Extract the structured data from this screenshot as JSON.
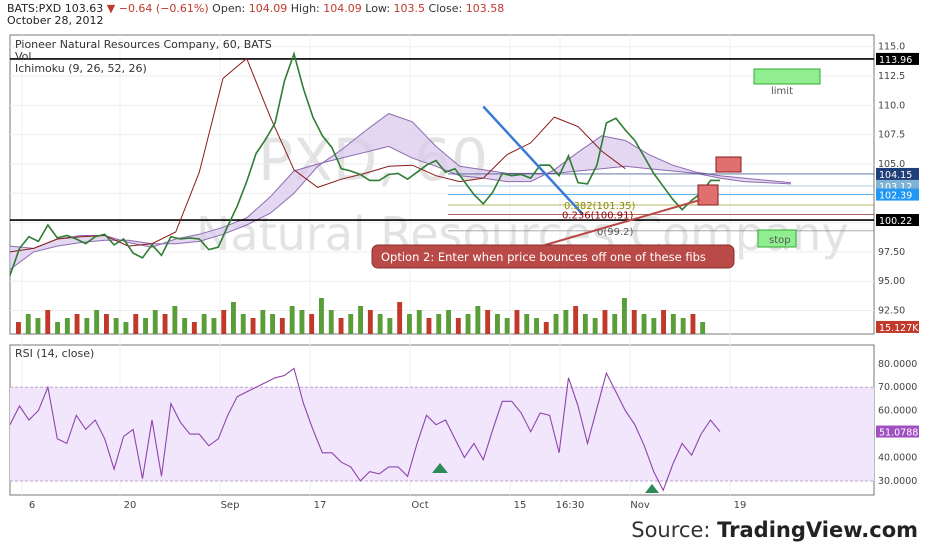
{
  "header": {
    "symbol": "BATS:PXD",
    "last": "103.63",
    "change": "▼ −0.64 (−0.61%)",
    "open_label": "Open:",
    "open": "104.09",
    "high_label": "High:",
    "high": "104.09",
    "low_label": "Low:",
    "low": "103.5",
    "close_label": "Close:",
    "close": "103.58",
    "date": "October 28, 2012"
  },
  "source": {
    "prefix": "Source: ",
    "brand": "TradingView.com"
  },
  "chart_data": [
    {
      "type": "line",
      "title": "Pioneer Natural Resources Company, 60, BATS",
      "indicator_labels": [
        "Vol",
        "Ichimoku (9, 26, 52, 26)"
      ],
      "watermark": [
        "PXD, 60",
        "Natural Resources Company"
      ],
      "x_ticks": [
        "6",
        "20",
        "Sep",
        "17",
        "Oct",
        "15",
        "16:30",
        "Nov",
        "19"
      ],
      "ylim": [
        90.5,
        116.0
      ],
      "y_ticks": [
        "92.50",
        "95.00",
        "97.50",
        "100.0",
        "102.5",
        "105.0",
        "107.5",
        "110.0",
        "112.5",
        "115.0"
      ],
      "price_tags": [
        {
          "label": "113.96",
          "value": 113.96,
          "color": "#000000"
        },
        {
          "label": "104.15",
          "value": 104.15,
          "color": "#1f3f7a"
        },
        {
          "label": "103.12",
          "value": 103.12,
          "color": "#7fb3d5"
        },
        {
          "label": "102.39",
          "value": 102.39,
          "color": "#2196f3"
        },
        {
          "label": "100.22",
          "value": 100.22,
          "color": "#000000"
        },
        {
          "label": "15.127K",
          "value": 91.1,
          "color": "#c0392b"
        }
      ],
      "horizontal_lines": [
        113.96,
        100.22
      ],
      "fib_labels": [
        {
          "label": "0.236(100.91)",
          "value": 100.7,
          "color": "#8b0000"
        },
        {
          "label": "0.382(101.35)",
          "value": 101.5,
          "color": "#8a8a00"
        },
        {
          "label": "0(99.2)",
          "value": 99.3,
          "color": "#555555"
        }
      ],
      "annotations": [
        {
          "text": "limit",
          "kind": "box",
          "color": "#90ee90"
        },
        {
          "text": "stop",
          "kind": "box",
          "color": "#90ee90"
        },
        {
          "text": "Option 2: Enter when price bounces off one of these fibs",
          "kind": "callout",
          "color": "#b94a48"
        }
      ],
      "series": [
        {
          "role": "price",
          "color": "#2e7d32",
          "x": [
            0,
            4,
            8,
            12,
            16,
            20,
            24,
            28,
            32,
            36,
            40,
            44,
            48,
            52,
            56,
            60,
            64,
            68,
            72,
            76,
            80,
            84,
            88,
            92,
            96,
            100,
            104,
            108,
            112,
            116,
            120,
            124,
            128,
            132,
            136,
            140,
            144,
            148,
            152,
            156,
            160,
            164,
            168,
            172,
            176,
            180,
            184,
            188,
            192,
            196,
            200,
            204,
            208,
            212,
            216,
            220,
            224,
            228,
            232,
            236,
            240,
            244,
            248,
            252,
            256,
            260,
            264,
            268,
            272,
            276,
            280,
            284,
            288,
            292,
            296,
            300
          ],
          "values": [
            95.5,
            97.8,
            98.8,
            98.4,
            99.8,
            98.7,
            98.9,
            98.6,
            98.2,
            98.8,
            99.0,
            98.1,
            98.6,
            97.4,
            97.0,
            98.1,
            97.2,
            98.8,
            98.6,
            98.7,
            98.6,
            97.7,
            97.9,
            99.7,
            101.4,
            103.5,
            105.9,
            107.1,
            108.5,
            112.1,
            114.4,
            111.4,
            109.0,
            107.4,
            106.4,
            104.6,
            104.4,
            104.1,
            103.6,
            103.6,
            104.1,
            104.2,
            103.7,
            104.3,
            104.9,
            105.3,
            104.3,
            104.6,
            103.5,
            102.4,
            101.6,
            102.6,
            104.2,
            104.0,
            104.1,
            103.8,
            104.9,
            104.9,
            104.0,
            105.7,
            103.4,
            103.3,
            104.9,
            108.5,
            108.9,
            107.9,
            107.0,
            105.6,
            104.2,
            103.1,
            102.0,
            101.1,
            101.9,
            102.5,
            103.6,
            103.6
          ]
        },
        {
          "role": "Ichimoku lagging span",
          "color": "#8b1a1a",
          "x": [
            0,
            10,
            20,
            30,
            40,
            50,
            60,
            70,
            80,
            90,
            100,
            110,
            120,
            130,
            140,
            150,
            160,
            170,
            180,
            190,
            200,
            210,
            220,
            230,
            240,
            250,
            260
          ],
          "values": [
            97.5,
            97.8,
            98.6,
            98.8,
            98.9,
            98.0,
            98.2,
            99.2,
            104.3,
            112.3,
            114.0,
            109.0,
            104.5,
            103.0,
            103.7,
            104.2,
            104.8,
            104.9,
            104.0,
            103.5,
            103.8,
            105.8,
            106.8,
            109.0,
            108.2,
            106.1,
            104.6
          ]
        },
        {
          "role": "Ichimoku cloud span A",
          "color": "#8e6bb0",
          "x": [
            0,
            10,
            20,
            30,
            40,
            50,
            60,
            70,
            80,
            90,
            100,
            110,
            120,
            130,
            140,
            150,
            160,
            170,
            180,
            190,
            200,
            210,
            220,
            230,
            240,
            250,
            260,
            270,
            280,
            290,
            300,
            310,
            320,
            330
          ],
          "values": [
            98.0,
            97.8,
            98.6,
            98.9,
            98.9,
            98.3,
            97.9,
            98.6,
            99.0,
            99.6,
            100.4,
            102.2,
            104.4,
            105.0,
            105.5,
            106.0,
            106.5,
            105.5,
            104.8,
            104.0,
            103.8,
            103.5,
            103.5,
            104.5,
            106.0,
            107.4,
            107.0,
            105.8,
            104.9,
            104.3,
            104.0,
            103.8,
            103.6,
            103.4
          ]
        },
        {
          "role": "Ichimoku cloud span B",
          "color": "#8e6bb0",
          "x": [
            0,
            10,
            20,
            30,
            40,
            50,
            60,
            70,
            80,
            90,
            100,
            110,
            120,
            130,
            140,
            150,
            160,
            170,
            180,
            190,
            200,
            210,
            220,
            230,
            240,
            250,
            260,
            270,
            280,
            290,
            300,
            310,
            320,
            330
          ],
          "values": [
            96.0,
            97.5,
            98.0,
            98.3,
            98.5,
            98.5,
            98.2,
            98.2,
            98.4,
            99.0,
            99.8,
            100.8,
            102.5,
            104.8,
            106.2,
            107.8,
            109.3,
            108.6,
            106.5,
            104.8,
            104.5,
            104.2,
            104.2,
            104.2,
            104.4,
            104.6,
            104.8,
            104.6,
            104.4,
            104.2,
            103.8,
            103.5,
            103.4,
            103.3
          ]
        }
      ],
      "volume_series": {
        "color": "#5a9e3a",
        "values": [
          3,
          5,
          4,
          6,
          3,
          4,
          5,
          4,
          6,
          5,
          4,
          3,
          5,
          4,
          6,
          5,
          7,
          4,
          3,
          5,
          4,
          6,
          8,
          5,
          4,
          6,
          5,
          4,
          7,
          6,
          5,
          9,
          6,
          4,
          5,
          7,
          6,
          5,
          4,
          8,
          5,
          6,
          4,
          5,
          6,
          4,
          5,
          7,
          6,
          5,
          4,
          6,
          5,
          4,
          3,
          5,
          6,
          7,
          5,
          4,
          6,
          5,
          9,
          6,
          5,
          4,
          6,
          5,
          4,
          5,
          3
        ]
      },
      "trendline": {
        "color": "#3a7bd5",
        "points": [
          [
            200,
            109.9
          ],
          [
            242,
            100.7
          ]
        ]
      },
      "pattern_boxes": [
        {
          "color": "#e07070",
          "label": ""
        },
        {
          "color": "#e07070",
          "label": ""
        }
      ]
    },
    {
      "type": "line",
      "title": "RSI (14, close)",
      "ylim": [
        24.0,
        88.0
      ],
      "y_ticks": [
        "30.0000",
        "40.0000",
        "50.0000",
        "60.0000",
        "70.0000",
        "80.0000"
      ],
      "bands": [
        30,
        70
      ],
      "price_tags": [
        {
          "label": "51.0788",
          "value": 51.0788,
          "color": "#a050c0"
        }
      ],
      "series": [
        {
          "name": "RSI",
          "color": "#8e44ad",
          "x": [
            0,
            4,
            8,
            12,
            16,
            20,
            24,
            28,
            32,
            36,
            40,
            44,
            48,
            52,
            56,
            60,
            64,
            68,
            72,
            76,
            80,
            84,
            88,
            92,
            96,
            100,
            104,
            108,
            112,
            116,
            120,
            124,
            128,
            132,
            136,
            140,
            144,
            148,
            152,
            156,
            160,
            164,
            168,
            172,
            176,
            180,
            184,
            188,
            192,
            196,
            200,
            204,
            208,
            212,
            216,
            220,
            224,
            228,
            232,
            236,
            240,
            244,
            248,
            252,
            256,
            260,
            264,
            268,
            272,
            276,
            280,
            284,
            288,
            292,
            296,
            300
          ],
          "values": [
            54,
            62,
            56,
            60,
            70,
            48,
            46,
            58,
            52,
            56,
            48,
            35,
            49,
            52,
            31,
            56,
            32,
            63,
            55,
            50,
            50,
            45,
            48,
            58,
            66,
            68,
            70,
            72,
            74,
            75,
            78,
            63,
            52,
            42,
            42,
            38,
            36,
            30,
            34,
            33,
            36,
            36,
            32,
            46,
            58,
            54,
            56,
            48,
            40,
            46,
            39,
            52,
            64,
            64,
            59,
            51,
            59,
            58,
            42,
            74,
            62,
            46,
            61,
            76,
            68,
            60,
            54,
            45,
            34,
            26,
            37,
            46,
            41,
            50,
            56,
            51
          ]
        }
      ],
      "markers": [
        {
          "kind": "arrow-up",
          "color": "#2e8b57"
        },
        {
          "kind": "arrow-up",
          "color": "#2e8b57"
        }
      ]
    }
  ]
}
